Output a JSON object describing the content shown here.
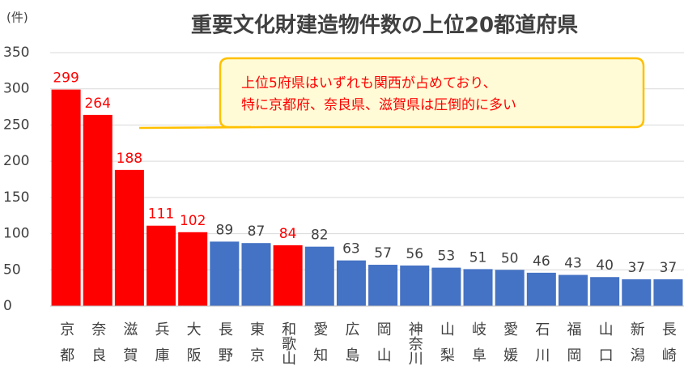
{
  "chart_data": {
    "type": "bar",
    "title": "重要文化財建造物件数の上位20都道府県",
    "unit_label": "(件)",
    "annotation": [
      "上位5府県はいずれも関西が占めており、",
      "特に京都府、奈良県、滋賀県は圧倒的に多い"
    ],
    "categories": [
      "京都",
      "奈良",
      "滋賀",
      "兵庫",
      "大阪",
      "長野",
      "東京",
      "和歌山",
      "愛知",
      "広島",
      "岡山",
      "神奈川",
      "山梨",
      "岐阜",
      "愛媛",
      "石川",
      "福岡",
      "山口",
      "新潟",
      "長崎"
    ],
    "values": [
      299,
      264,
      188,
      111,
      102,
      89,
      87,
      84,
      82,
      63,
      57,
      56,
      53,
      51,
      50,
      46,
      43,
      40,
      37,
      37
    ],
    "colors": [
      "#ff0000",
      "#ff0000",
      "#ff0000",
      "#ff0000",
      "#ff0000",
      "#4472c4",
      "#4472c4",
      "#ff0000",
      "#4472c4",
      "#4472c4",
      "#4472c4",
      "#4472c4",
      "#4472c4",
      "#4472c4",
      "#4472c4",
      "#4472c4",
      "#4472c4",
      "#4472c4",
      "#4472c4",
      "#4472c4"
    ],
    "value_label_colors": [
      "#ff0000",
      "#ff0000",
      "#ff0000",
      "#ff0000",
      "#ff0000",
      "#404040",
      "#404040",
      "#ff0000",
      "#404040",
      "#404040",
      "#404040",
      "#404040",
      "#404040",
      "#404040",
      "#404040",
      "#404040",
      "#404040",
      "#404040",
      "#404040",
      "#404040"
    ],
    "ylim": [
      0,
      350
    ],
    "yticks": [
      0,
      50,
      100,
      150,
      200,
      250,
      300,
      350
    ],
    "grid": true
  }
}
